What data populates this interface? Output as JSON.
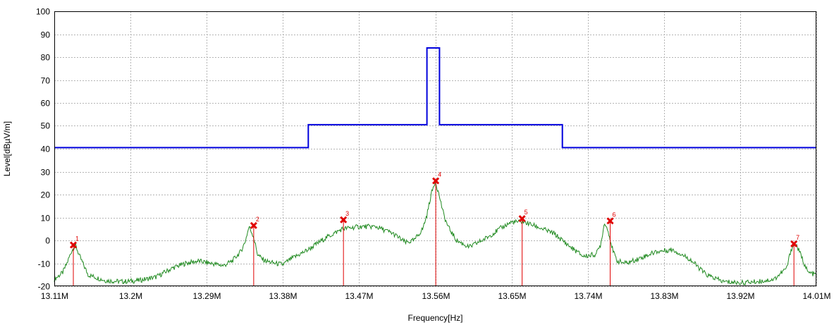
{
  "chart_data": {
    "type": "line",
    "xlabel": "Frequency[Hz]",
    "ylabel": "Level[dBµV/m]",
    "xlim": [
      13.11,
      14.01
    ],
    "ylim": [
      -20,
      100
    ],
    "x_ticks": [
      {
        "value": 13.11,
        "label": "13.11M"
      },
      {
        "value": 13.2,
        "label": "13.2M"
      },
      {
        "value": 13.29,
        "label": "13.29M"
      },
      {
        "value": 13.38,
        "label": "13.38M"
      },
      {
        "value": 13.47,
        "label": "13.47M"
      },
      {
        "value": 13.56,
        "label": "13.56M"
      },
      {
        "value": 13.65,
        "label": "13.65M"
      },
      {
        "value": 13.74,
        "label": "13.74M"
      },
      {
        "value": 13.83,
        "label": "13.83M"
      },
      {
        "value": 13.92,
        "label": "13.92M"
      },
      {
        "value": 14.01,
        "label": "14.01M"
      }
    ],
    "y_ticks": [
      -20,
      -10,
      0,
      10,
      20,
      30,
      40,
      50,
      60,
      70,
      80,
      90,
      100
    ],
    "grid": true,
    "series": [
      {
        "kind": "limit",
        "color": "#0000dd",
        "x": [
          13.11,
          13.41,
          13.41,
          13.5501,
          13.5501,
          13.5649,
          13.5649,
          13.71,
          13.71,
          14.01
        ],
        "y": [
          40.5,
          40.5,
          50.5,
          50.5,
          84,
          84,
          50.5,
          50.5,
          40.5,
          40.5
        ]
      },
      {
        "kind": "trace",
        "color": "#228b22",
        "x": [
          13.11,
          13.12,
          13.125,
          13.13,
          13.135,
          13.14,
          13.15,
          13.17,
          13.19,
          13.21,
          13.23,
          13.25,
          13.265,
          13.28,
          13.295,
          13.31,
          13.32,
          13.33,
          13.335,
          13.34,
          13.345,
          13.35,
          13.355,
          13.36,
          13.37,
          13.38,
          13.39,
          13.41,
          13.43,
          13.45,
          13.47,
          13.49,
          13.51,
          13.525,
          13.535,
          13.545,
          13.55,
          13.555,
          13.56,
          13.565,
          13.57,
          13.575,
          13.585,
          13.6,
          13.62,
          13.64,
          13.65,
          13.665,
          13.68,
          13.7,
          13.72,
          13.735,
          13.75,
          13.755,
          13.76,
          13.765,
          13.77,
          13.775,
          13.785,
          13.8,
          13.82,
          13.84,
          13.86,
          13.88,
          13.9,
          13.92,
          13.94,
          13.96,
          13.975,
          13.98,
          13.985,
          13.99,
          14.0,
          14.01
        ],
        "y": [
          -17,
          -14,
          -10,
          -5,
          -2,
          -7,
          -15,
          -17.5,
          -18,
          -17.5,
          -16,
          -12,
          -10,
          -9,
          -10,
          -11,
          -9,
          -5,
          -1,
          6,
          2,
          -6,
          -8,
          -9,
          -10,
          -10.5,
          -8,
          -4,
          1,
          5,
          6,
          6,
          3,
          -1,
          0,
          5,
          11,
          20,
          26,
          19,
          11,
          6,
          0,
          -3,
          1,
          6,
          8,
          8,
          6,
          3,
          -3,
          -7,
          -6,
          -2,
          8,
          3,
          -5,
          -9,
          -10,
          -8,
          -5,
          -4,
          -8,
          -15,
          -18,
          -18.5,
          -18,
          -17,
          -12,
          -4,
          -1,
          -5,
          -14,
          -15
        ]
      }
    ],
    "markers": [
      {
        "label": "1",
        "x": 13.1325,
        "y": -2
      },
      {
        "label": "2",
        "x": 13.3455,
        "y": 6.5
      },
      {
        "label": "3",
        "x": 13.4515,
        "y": 9
      },
      {
        "label": "4",
        "x": 13.5605,
        "y": 26
      },
      {
        "label": "5",
        "x": 13.6625,
        "y": 9.5
      },
      {
        "label": "6",
        "x": 13.7665,
        "y": 8.5
      },
      {
        "label": "7",
        "x": 13.9835,
        "y": -1.5
      }
    ]
  }
}
